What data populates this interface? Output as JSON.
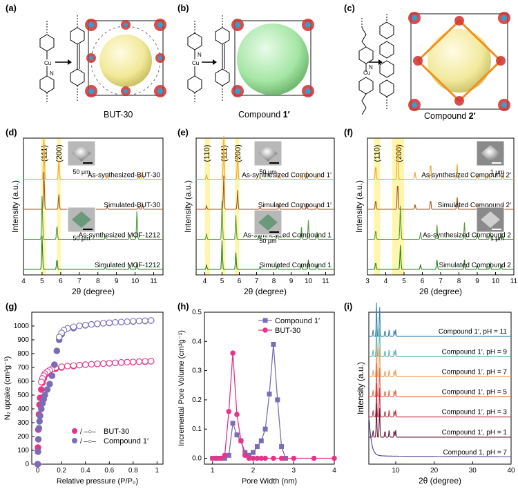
{
  "panel_labels": [
    "(a)",
    "(b)",
    "(c)",
    "(d)",
    "(e)",
    "(f)",
    "(g)",
    "(h)",
    "(i)"
  ],
  "structure_captions": {
    "a": "BUT-30",
    "b_text": "Compound ",
    "b_bold": "1′",
    "c_text": "Compound ",
    "c_bold": "2′"
  },
  "structure_atoms": {
    "cu": "Cu",
    "n": "N"
  },
  "chart_data": [
    {
      "id": "d",
      "type": "line",
      "xlabel": "2θ (degree)",
      "ylabel": "Intensity (a.u.)",
      "xlim": [
        4,
        11.5
      ],
      "xticks": [
        4,
        5,
        6,
        7,
        8,
        9,
        10,
        11
      ],
      "highlight_bands": [
        [
          4.95,
          5.2
        ],
        [
          5.8,
          6.0
        ]
      ],
      "reflections": [
        {
          "label": "(111)",
          "x": 5.1
        },
        {
          "label": "(200)",
          "x": 5.9
        }
      ],
      "inset_scale": [
        "50 μm",
        "50 μm"
      ],
      "series": [
        {
          "name": "As-synthesized-BUT-30",
          "color": "#f0a030",
          "offset": 3,
          "peaks": [
            [
              5.1,
              9
            ],
            [
              5.9,
              4
            ],
            [
              8.5,
              0.8
            ],
            [
              10.2,
              0.8
            ],
            [
              10.4,
              1.6
            ]
          ]
        },
        {
          "name": "Simulated-BUT-30",
          "color": "#a0521e",
          "offset": 2,
          "peaks": [
            [
              5.1,
              8
            ],
            [
              5.9,
              3.2
            ],
            [
              8.5,
              0.6
            ],
            [
              10.2,
              0.7
            ],
            [
              10.4,
              1.2
            ]
          ]
        },
        {
          "name": "As-synthesized MOF-1212",
          "color": "#4f9a3a",
          "offset": 1,
          "peaks": [
            [
              5.0,
              9
            ],
            [
              5.8,
              3
            ],
            [
              8.4,
              0.6
            ],
            [
              9.7,
              0.6
            ],
            [
              10.1,
              6
            ]
          ]
        },
        {
          "name": "Simulated MOF-1212",
          "color": "#1e7d20",
          "offset": 0,
          "peaks": [
            [
              5.0,
              7
            ],
            [
              5.8,
              2.2
            ],
            [
              8.4,
              0.5
            ],
            [
              9.7,
              0.5
            ],
            [
              10.1,
              1.5
            ]
          ]
        }
      ]
    },
    {
      "id": "e",
      "type": "line",
      "xlabel": "2θ (degree)",
      "ylabel": "Intensity (a.u.)",
      "xlim": [
        3.5,
        11.5
      ],
      "xticks": [
        4,
        5,
        6,
        7,
        8,
        9,
        10,
        11
      ],
      "highlight_bands": [
        [
          4.0,
          4.3
        ],
        [
          4.95,
          5.2
        ],
        [
          5.75,
          6.0
        ]
      ],
      "reflections": [
        {
          "label": "(110)",
          "x": 4.1
        },
        {
          "label": "(111)",
          "x": 5.1
        },
        {
          "label": "(200)",
          "x": 5.9
        }
      ],
      "inset_scale": [
        "50 μm",
        "50 μm"
      ],
      "series": [
        {
          "name": "As-synthesized Compound 1′",
          "color": "#f0a030",
          "offset": 3,
          "peaks": [
            [
              4.1,
              1
            ],
            [
              5.1,
              9
            ],
            [
              5.9,
              6
            ],
            [
              7.2,
              0.6
            ],
            [
              8.3,
              1.2
            ],
            [
              9.6,
              0.8
            ],
            [
              9.9,
              1.6
            ],
            [
              10.5,
              1
            ]
          ]
        },
        {
          "name": "Simulated Compound 1′",
          "color": "#a0521e",
          "offset": 2,
          "peaks": [
            [
              4.1,
              0.8
            ],
            [
              5.1,
              7
            ],
            [
              5.9,
              4
            ],
            [
              7.2,
              0.5
            ],
            [
              8.3,
              1
            ],
            [
              9.6,
              0.6
            ],
            [
              9.9,
              1.2
            ],
            [
              10.5,
              0.8
            ]
          ]
        },
        {
          "name": "As-synthesized Compound 1",
          "color": "#4f9a3a",
          "offset": 1,
          "peaks": [
            [
              4.1,
              1.2
            ],
            [
              5.0,
              8
            ],
            [
              5.8,
              5
            ],
            [
              7.2,
              0.7
            ],
            [
              8.2,
              1.8
            ],
            [
              9.6,
              2.5
            ],
            [
              10.0,
              4
            ],
            [
              10.5,
              1.5
            ]
          ]
        },
        {
          "name": "Simulated Compound 1",
          "color": "#1e7d20",
          "offset": 0,
          "peaks": [
            [
              4.1,
              1
            ],
            [
              5.0,
              6
            ],
            [
              5.8,
              3.5
            ],
            [
              7.2,
              0.5
            ],
            [
              8.2,
              1
            ],
            [
              9.6,
              1
            ],
            [
              10.0,
              2
            ],
            [
              10.5,
              1
            ]
          ]
        }
      ]
    },
    {
      "id": "f",
      "type": "line",
      "xlabel": "2θ (degree)",
      "ylabel": "Intensity (a.u.)",
      "xlim": [
        3,
        11
      ],
      "xticks": [
        3,
        4,
        5,
        6,
        7,
        8,
        9,
        10,
        11
      ],
      "highlight_bands": [
        [
          3.35,
          3.7
        ],
        [
          4.35,
          5.0
        ]
      ],
      "reflections": [
        {
          "label": "(110)",
          "x": 3.5
        },
        {
          "label": "(200)",
          "x": 4.7
        }
      ],
      "inset_scale": [
        "1 μm",
        "1 μm"
      ],
      "series": [
        {
          "name": "As-synthesized Compound 2′",
          "color": "#f0a030",
          "offset": 3,
          "peaks": [
            [
              3.45,
              3
            ],
            [
              4.65,
              9
            ],
            [
              5.6,
              1.5
            ],
            [
              6.45,
              3.5
            ],
            [
              7.9,
              3.2
            ],
            [
              9.0,
              1
            ],
            [
              9.6,
              1.2
            ],
            [
              10.4,
              1
            ]
          ]
        },
        {
          "name": "Simulated Compound 2′",
          "color": "#a0521e",
          "offset": 2,
          "peaks": [
            [
              3.45,
              2
            ],
            [
              4.65,
              6
            ],
            [
              5.6,
              1
            ],
            [
              6.45,
              2
            ],
            [
              7.9,
              2.5
            ],
            [
              9.0,
              0.8
            ],
            [
              9.6,
              0.8
            ],
            [
              10.4,
              0.8
            ]
          ]
        },
        {
          "name": "As-synthesized Compound 2",
          "color": "#4f9a3a",
          "offset": 1,
          "peaks": [
            [
              3.45,
              2
            ],
            [
              4.8,
              7
            ],
            [
              5.9,
              1.5
            ],
            [
              6.8,
              3
            ],
            [
              8.3,
              3.5
            ],
            [
              9.0,
              1.5
            ],
            [
              9.7,
              3
            ],
            [
              10.3,
              1.5
            ]
          ]
        },
        {
          "name": "Simulated Compound 2",
          "color": "#1e7d20",
          "offset": 0,
          "peaks": [
            [
              3.45,
              1.5
            ],
            [
              4.8,
              5
            ],
            [
              5.9,
              1
            ],
            [
              6.8,
              2
            ],
            [
              8.3,
              2
            ],
            [
              9.0,
              1
            ],
            [
              9.7,
              1.5
            ],
            [
              10.3,
              1
            ]
          ]
        }
      ]
    },
    {
      "id": "g",
      "type": "scatter",
      "xlabel": "Relative pressure (P/P₀)",
      "ylabel": "N₂ uptake (cm³g⁻¹)",
      "xlim": [
        -0.05,
        1.05
      ],
      "ylim": [
        0,
        1100
      ],
      "xticks": [
        0,
        0.2,
        0.4,
        0.6,
        0.8,
        1.0
      ],
      "yticks": [
        0,
        100,
        200,
        300,
        400,
        500,
        600,
        700,
        800,
        900,
        1000
      ],
      "legend": [
        {
          "name": "BUT-30",
          "marker": "/ –○–",
          "color": "#e8338a"
        },
        {
          "name": "Compound 1′",
          "marker": "/ –○–",
          "color": "#7b6db5"
        }
      ],
      "series": [
        {
          "name": "BUT-30 adsorption",
          "color": "#e8338a",
          "filled": true,
          "x": [
            0.0,
            0.002,
            0.005,
            0.01,
            0.015,
            0.02,
            0.03,
            0.04,
            0.05,
            0.07,
            0.1,
            0.15,
            0.2,
            0.3,
            0.4,
            0.5,
            0.6,
            0.7,
            0.8,
            0.9,
            0.95
          ],
          "y": [
            0,
            120,
            250,
            360,
            430,
            480,
            540,
            590,
            620,
            650,
            670,
            690,
            700,
            710,
            720,
            725,
            730,
            735,
            738,
            742,
            745
          ]
        },
        {
          "name": "BUT-30 desorption",
          "color": "#e8338a",
          "filled": false,
          "x": [
            0.95,
            0.9,
            0.85,
            0.8,
            0.75,
            0.7,
            0.65,
            0.6,
            0.55,
            0.5,
            0.45,
            0.4,
            0.35,
            0.3,
            0.25,
            0.2,
            0.15,
            0.12,
            0.1,
            0.08,
            0.06,
            0.05,
            0.04,
            0.03
          ],
          "y": [
            745,
            744,
            742,
            740,
            738,
            736,
            733,
            731,
            728,
            726,
            723,
            720,
            717,
            714,
            710,
            705,
            698,
            690,
            680,
            670,
            655,
            640,
            620,
            595
          ]
        },
        {
          "name": "Compound 1′ adsorption",
          "color": "#7b6db5",
          "filled": true,
          "x": [
            0.0,
            0.002,
            0.005,
            0.01,
            0.015,
            0.02,
            0.03,
            0.04,
            0.05,
            0.06,
            0.08,
            0.1,
            0.12,
            0.14,
            0.16,
            0.18,
            0.2,
            0.3,
            0.4,
            0.5,
            0.6,
            0.7,
            0.8,
            0.9,
            0.95
          ],
          "y": [
            0,
            90,
            180,
            260,
            310,
            350,
            400,
            440,
            470,
            500,
            540,
            580,
            640,
            720,
            820,
            900,
            940,
            985,
            1005,
            1015,
            1022,
            1028,
            1032,
            1036,
            1040
          ]
        },
        {
          "name": "Compound 1′ desorption",
          "color": "#7b6db5",
          "filled": false,
          "x": [
            0.95,
            0.9,
            0.85,
            0.8,
            0.75,
            0.7,
            0.65,
            0.6,
            0.55,
            0.5,
            0.45,
            0.4,
            0.35,
            0.3,
            0.25,
            0.22,
            0.2,
            0.18
          ],
          "y": [
            1040,
            1038,
            1036,
            1034,
            1031,
            1029,
            1026,
            1023,
            1020,
            1016,
            1012,
            1007,
            1001,
            994,
            983,
            970,
            950,
            920
          ]
        }
      ]
    },
    {
      "id": "h",
      "type": "line",
      "xlabel": "Pore Width (nm)",
      "ylabel": "Incremental Pore Volume (cm³g⁻¹)",
      "xlim": [
        0.8,
        4
      ],
      "ylim": [
        -0.02,
        0.5
      ],
      "xticks": [
        1,
        2,
        3,
        4
      ],
      "yticks": [
        0.0,
        0.1,
        0.2,
        0.3,
        0.4,
        0.5
      ],
      "series": [
        {
          "name": "Compound 1′",
          "color": "#7b6db5",
          "marker": "square",
          "x": [
            1.0,
            1.1,
            1.2,
            1.3,
            1.4,
            1.5,
            1.6,
            1.7,
            1.8,
            1.9,
            2.0,
            2.1,
            2.2,
            2.3,
            2.4,
            2.5,
            2.6,
            2.7,
            2.8
          ],
          "y": [
            0,
            0,
            0,
            0,
            0.01,
            0.12,
            0.08,
            0.06,
            0.02,
            0.01,
            0.02,
            0.04,
            0.06,
            0.1,
            0.22,
            0.39,
            0.2,
            0.04,
            0
          ]
        },
        {
          "name": "BUT-30",
          "color": "#e8338a",
          "marker": "circle",
          "x": [
            1.0,
            1.1,
            1.2,
            1.3,
            1.4,
            1.5,
            1.6,
            1.7,
            1.8,
            1.9,
            2.0,
            2.1,
            2.2,
            2.3,
            2.5,
            2.7,
            3.0,
            3.5,
            4.0
          ],
          "y": [
            0,
            0,
            0,
            0.01,
            0.16,
            0.36,
            0.15,
            0.06,
            0.01,
            0,
            0,
            0,
            0,
            0,
            0,
            0,
            0,
            0,
            0
          ]
        }
      ]
    },
    {
      "id": "i",
      "type": "line",
      "xlabel": "2θ (degree)",
      "ylabel": "Intensity (a.u.)",
      "xlim": [
        3,
        40
      ],
      "xticks": [
        10,
        20,
        30,
        40
      ],
      "series": [
        {
          "name": "Compound 1′, pH = 11",
          "color": "#3a82b0",
          "offset": 6
        },
        {
          "name": "Compound 1′, pH = 9",
          "color": "#5fb8b0",
          "offset": 5
        },
        {
          "name": "Compound 1′, pH = 7",
          "color": "#f5a060",
          "offset": 4
        },
        {
          "name": "Compound 1′, pH = 5",
          "color": "#e07050",
          "offset": 3
        },
        {
          "name": "Compound 1′, pH = 3",
          "color": "#c03a4a",
          "offset": 2
        },
        {
          "name": "Compound 1′, pH = 1",
          "color": "#6a1a3a",
          "offset": 1
        },
        {
          "name": "Compound 1, pH = 7",
          "color": "#4a3a90",
          "offset": 0
        }
      ],
      "peaks_2theta": [
        4.1,
        5.0,
        5.8,
        7.2,
        8.3,
        9.6,
        10.0
      ]
    }
  ]
}
